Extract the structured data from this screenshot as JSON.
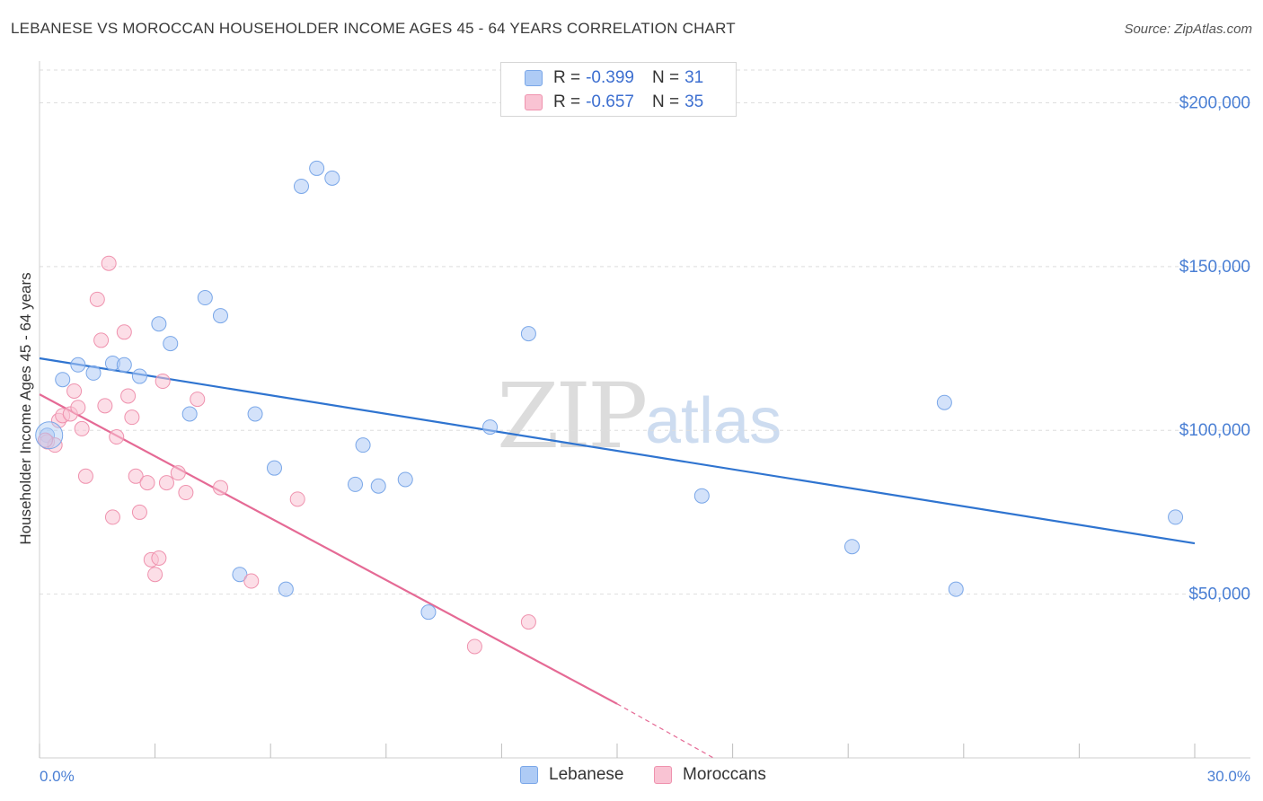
{
  "header": {
    "title": "LEBANESE VS MOROCCAN HOUSEHOLDER INCOME AGES 45 - 64 YEARS CORRELATION CHART",
    "source": "Source: ZipAtlas.com"
  },
  "watermark": {
    "zip": "ZIP",
    "atlas": "atlas"
  },
  "legend": {
    "rows": [
      {
        "r_label": "R = ",
        "r_value": "-0.399",
        "n_label": "N = ",
        "n_value": "31",
        "color": "#aecbf5",
        "border": "#7aa7e8"
      },
      {
        "r_label": "R = ",
        "r_value": "-0.657",
        "n_label": "N = ",
        "n_value": "35",
        "color": "#f9c3d3",
        "border": "#ef92ae"
      }
    ]
  },
  "bottom_legend": {
    "items": [
      "Lebanese",
      "Moroccans"
    ]
  },
  "chart_data": {
    "type": "scatter",
    "title": "LEBANESE VS MOROCCAN HOUSEHOLDER INCOME AGES 45 - 64 YEARS CORRELATION CHART",
    "xlabel": "",
    "ylabel": "Householder Income Ages 45 - 64 years",
    "xlim": [
      0,
      30
    ],
    "ylim": [
      0,
      210000
    ],
    "x_tick_labels": [
      "0.0%",
      "30.0%"
    ],
    "y_ticks": [
      50000,
      100000,
      150000,
      200000
    ],
    "y_tick_labels": [
      "$50,000",
      "$100,000",
      "$150,000",
      "$200,000"
    ],
    "grid": "horizontal dashed",
    "legend_position": "top-center",
    "series": [
      {
        "name": "Lebanese",
        "color": "#7aa7e8",
        "fill": "#aecbf5",
        "line_color": "#2f74d0",
        "trend": {
          "x0": 0,
          "y0": 122000,
          "x1": 30,
          "y1": 65500
        },
        "points": [
          [
            0.2,
            98500
          ],
          [
            0.6,
            115500
          ],
          [
            1.0,
            120000
          ],
          [
            1.4,
            117500
          ],
          [
            1.9,
            120500
          ],
          [
            2.2,
            120000
          ],
          [
            2.6,
            116500
          ],
          [
            3.1,
            132500
          ],
          [
            3.4,
            126500
          ],
          [
            3.9,
            105000
          ],
          [
            4.3,
            140500
          ],
          [
            4.7,
            135000
          ],
          [
            5.2,
            56000
          ],
          [
            5.6,
            105000
          ],
          [
            6.1,
            88500
          ],
          [
            6.4,
            51500
          ],
          [
            6.8,
            174500
          ],
          [
            7.2,
            180000
          ],
          [
            7.6,
            177000
          ],
          [
            8.2,
            83500
          ],
          [
            8.4,
            95500
          ],
          [
            8.8,
            83000
          ],
          [
            9.5,
            85000
          ],
          [
            10.1,
            44500
          ],
          [
            11.7,
            101000
          ],
          [
            12.7,
            129500
          ],
          [
            17.2,
            80000
          ],
          [
            21.1,
            64500
          ],
          [
            23.5,
            108500
          ],
          [
            23.8,
            51500
          ],
          [
            29.5,
            73500
          ]
        ]
      },
      {
        "name": "Moroccans",
        "color": "#ef92ae",
        "fill": "#f9c3d3",
        "line_color": "#e56a95",
        "trend": {
          "x0": 0,
          "y0": 111000,
          "x1": 15,
          "y1": 16500
        },
        "trend_dashed": {
          "x0": 15,
          "y0": 16500,
          "x1": 17.5,
          "y1": 0
        },
        "points": [
          [
            0.2,
            96500
          ],
          [
            0.4,
            95500
          ],
          [
            0.5,
            103000
          ],
          [
            0.6,
            104500
          ],
          [
            0.8,
            105000
          ],
          [
            0.9,
            112000
          ],
          [
            1.0,
            107000
          ],
          [
            1.1,
            100500
          ],
          [
            1.2,
            86000
          ],
          [
            1.5,
            140000
          ],
          [
            1.6,
            127500
          ],
          [
            1.7,
            107500
          ],
          [
            1.8,
            151000
          ],
          [
            1.9,
            73500
          ],
          [
            2.0,
            98000
          ],
          [
            2.2,
            130000
          ],
          [
            2.3,
            110500
          ],
          [
            2.4,
            104000
          ],
          [
            2.5,
            86000
          ],
          [
            2.6,
            75000
          ],
          [
            2.8,
            84000
          ],
          [
            2.9,
            60500
          ],
          [
            3.0,
            56000
          ],
          [
            3.1,
            61000
          ],
          [
            3.2,
            115000
          ],
          [
            3.3,
            84000
          ],
          [
            3.6,
            87000
          ],
          [
            3.8,
            81000
          ],
          [
            4.1,
            109500
          ],
          [
            4.7,
            82500
          ],
          [
            5.5,
            54000
          ],
          [
            6.7,
            79000
          ],
          [
            11.3,
            34000
          ],
          [
            12.7,
            41500
          ],
          [
            0.15,
            97000
          ]
        ]
      }
    ]
  }
}
